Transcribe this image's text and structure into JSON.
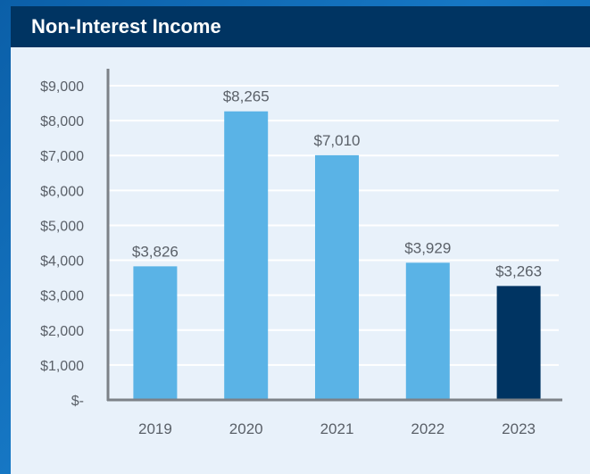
{
  "chart_data": {
    "type": "bar",
    "title": "Non-Interest Income",
    "categories": [
      "2019",
      "2020",
      "2021",
      "2022",
      "2023"
    ],
    "values": [
      3826,
      8265,
      7010,
      3929,
      3263
    ],
    "data_labels": [
      "$3,826",
      "$8,265",
      "$7,010",
      "$3,929",
      "$3,263"
    ],
    "yticks": [
      0,
      1000,
      2000,
      3000,
      4000,
      5000,
      6000,
      7000,
      8000,
      9000
    ],
    "ytick_labels": [
      "$-",
      "$1,000",
      "$2,000",
      "$3,000",
      "$4,000",
      "$5,000",
      "$6,000",
      "$7,000",
      "$8,000",
      "$9,000"
    ],
    "ylim": [
      0,
      9000
    ],
    "xlabel": "",
    "ylabel": "",
    "grid": true,
    "colors": {
      "bar": "#5ab3e6",
      "highlight_bar": "#003462",
      "grid": "#ffffff",
      "axis": "#7d8288"
    },
    "highlight_category": "2023"
  }
}
